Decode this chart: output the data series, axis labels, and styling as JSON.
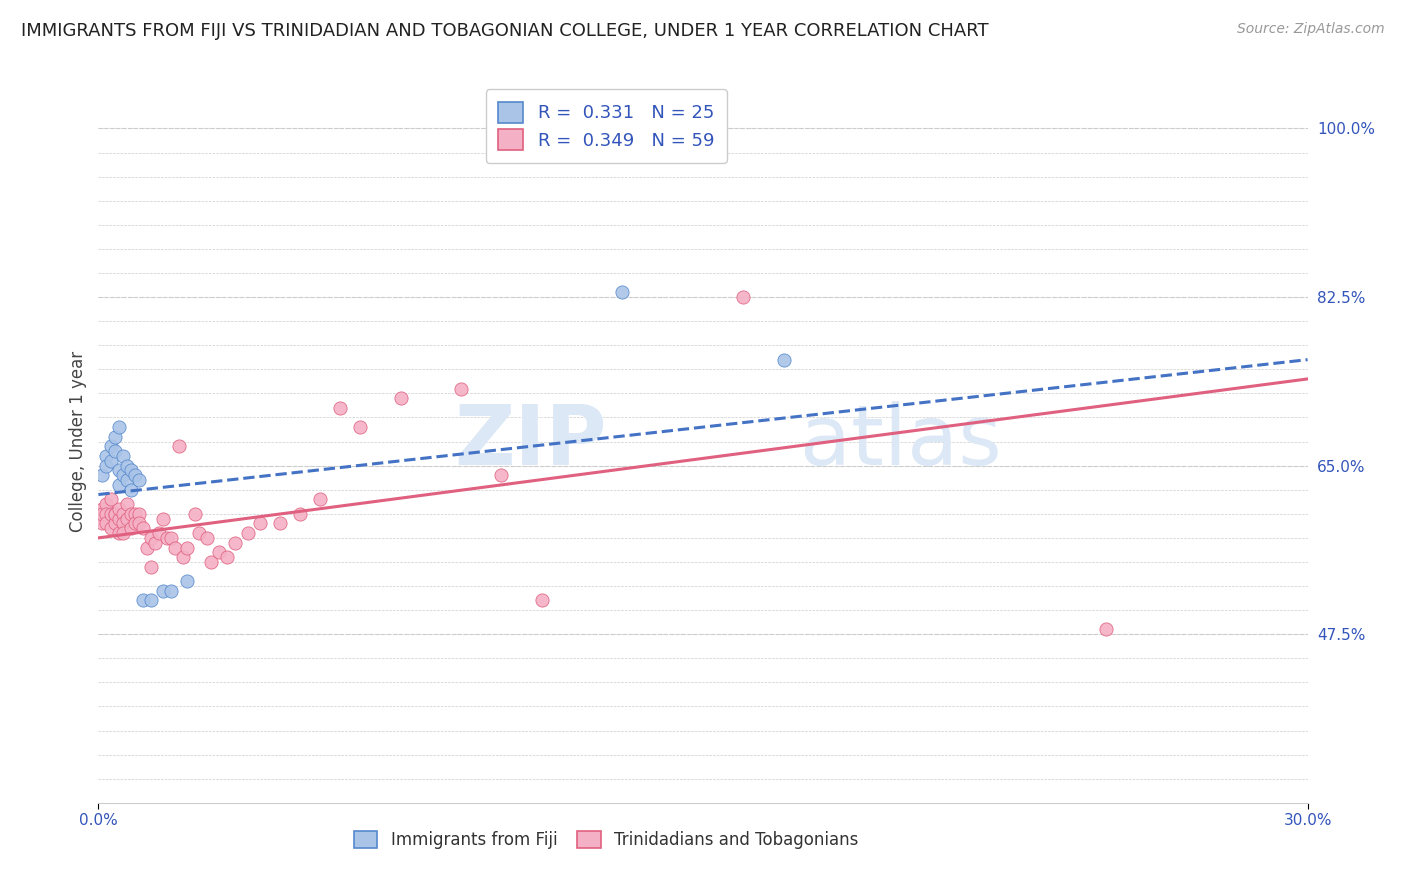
{
  "title": "IMMIGRANTS FROM FIJI VS TRINIDADIAN AND TOBAGONIAN COLLEGE, UNDER 1 YEAR CORRELATION CHART",
  "source": "Source: ZipAtlas.com",
  "ylabel": "College, Under 1 year",
  "xmin": 0.0,
  "xmax": 0.3,
  "ymin": 0.3,
  "ymax": 1.05,
  "ytick_labels_right": [
    "47.5%",
    "65.0%",
    "82.5%",
    "100.0%"
  ],
  "ytick_positions_right": [
    0.475,
    0.65,
    0.825,
    1.0
  ],
  "fiji_R": 0.331,
  "fiji_N": 25,
  "tnt_R": 0.349,
  "tnt_N": 59,
  "fiji_color": "#aac4e8",
  "fiji_edge_color": "#5588cc",
  "tnt_color": "#f4b0c4",
  "tnt_edge_color": "#e06080",
  "fiji_line_color": "#4472c4",
  "tnt_line_color": "#e06080",
  "fiji_scatter_x": [
    0.001,
    0.002,
    0.002,
    0.003,
    0.003,
    0.004,
    0.004,
    0.005,
    0.005,
    0.005,
    0.006,
    0.006,
    0.007,
    0.007,
    0.008,
    0.008,
    0.009,
    0.01,
    0.011,
    0.013,
    0.016,
    0.018,
    0.022,
    0.13,
    0.17
  ],
  "fiji_scatter_y": [
    0.64,
    0.66,
    0.65,
    0.67,
    0.655,
    0.68,
    0.665,
    0.69,
    0.645,
    0.63,
    0.66,
    0.64,
    0.65,
    0.635,
    0.645,
    0.625,
    0.64,
    0.635,
    0.51,
    0.51,
    0.52,
    0.52,
    0.53,
    0.83,
    0.76
  ],
  "tnt_scatter_x": [
    0.001,
    0.001,
    0.001,
    0.002,
    0.002,
    0.002,
    0.003,
    0.003,
    0.003,
    0.004,
    0.004,
    0.004,
    0.005,
    0.005,
    0.005,
    0.006,
    0.006,
    0.006,
    0.007,
    0.007,
    0.008,
    0.008,
    0.009,
    0.009,
    0.01,
    0.01,
    0.011,
    0.012,
    0.013,
    0.013,
    0.014,
    0.015,
    0.016,
    0.017,
    0.018,
    0.019,
    0.02,
    0.021,
    0.022,
    0.024,
    0.025,
    0.027,
    0.028,
    0.03,
    0.032,
    0.034,
    0.037,
    0.04,
    0.045,
    0.05,
    0.055,
    0.06,
    0.065,
    0.075,
    0.09,
    0.1,
    0.11,
    0.16,
    0.25
  ],
  "tnt_scatter_y": [
    0.605,
    0.59,
    0.6,
    0.61,
    0.6,
    0.59,
    0.615,
    0.6,
    0.585,
    0.6,
    0.59,
    0.6,
    0.595,
    0.58,
    0.605,
    0.6,
    0.59,
    0.58,
    0.61,
    0.595,
    0.6,
    0.585,
    0.6,
    0.59,
    0.6,
    0.59,
    0.585,
    0.565,
    0.575,
    0.545,
    0.57,
    0.58,
    0.595,
    0.575,
    0.575,
    0.565,
    0.67,
    0.555,
    0.565,
    0.6,
    0.58,
    0.575,
    0.55,
    0.56,
    0.555,
    0.57,
    0.58,
    0.59,
    0.59,
    0.6,
    0.615,
    0.71,
    0.69,
    0.72,
    0.73,
    0.64,
    0.51,
    0.825,
    0.48
  ],
  "fiji_trend_x": [
    0.0,
    0.3
  ],
  "fiji_trend_y": [
    0.62,
    0.76
  ],
  "tnt_trend_x": [
    0.0,
    0.3
  ],
  "tnt_trend_y": [
    0.575,
    0.74
  ],
  "grid_color": "#cccccc",
  "watermark_text": "ZIP",
  "watermark_text2": "atlas",
  "watermark_color": "#dce8f5",
  "background_color": "#ffffff",
  "title_fontsize": 13,
  "source_fontsize": 10,
  "tick_color": "#3355bb",
  "marker_size": 90
}
